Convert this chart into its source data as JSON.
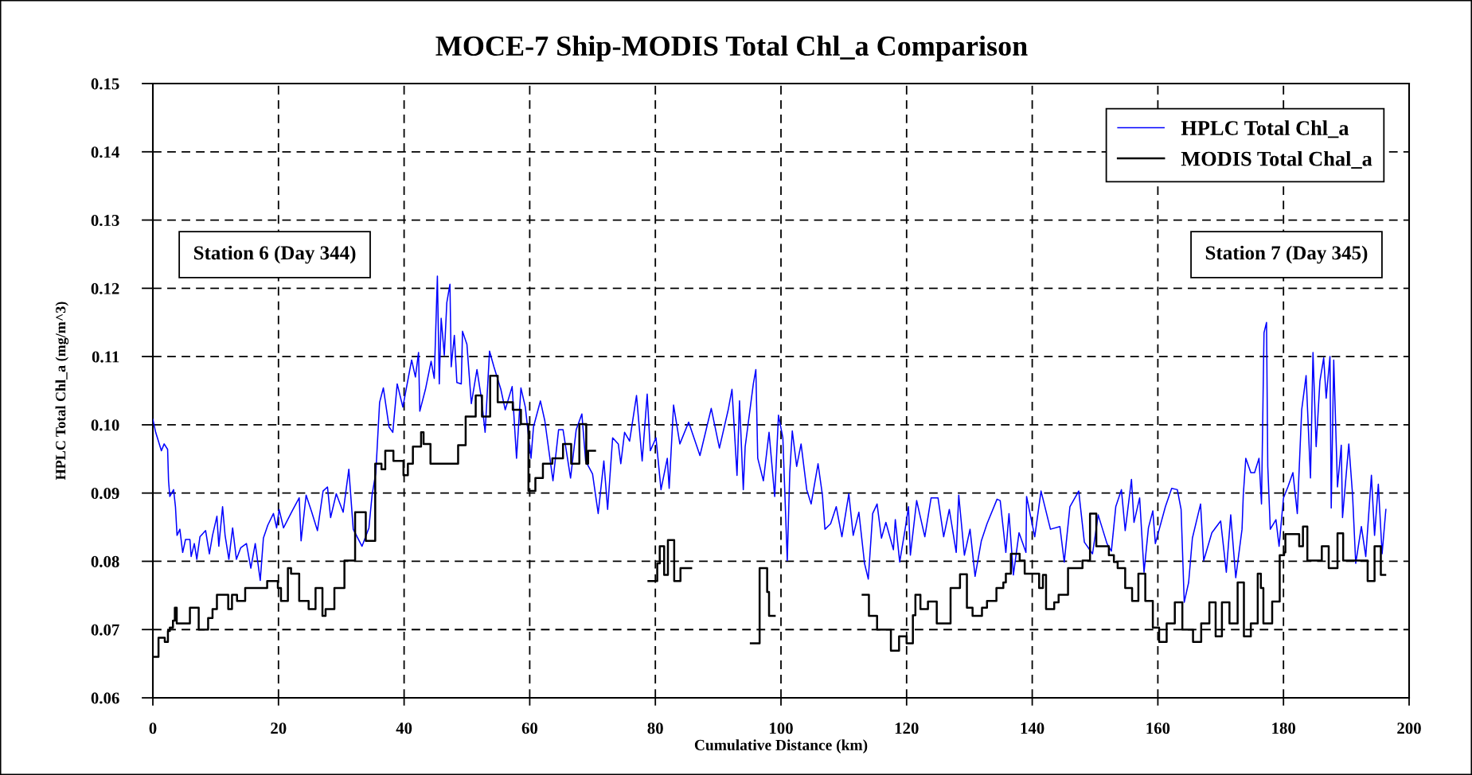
{
  "chart_data": {
    "type": "line",
    "title": "MOCE-7 Ship-MODIS Total Chl_a Comparison",
    "xlabel": "Cumulative Distance (km)",
    "ylabel": "HPLC Total Chl_a (mg/m^3)",
    "annotations": [
      "Station 6 (Day 344)",
      "Station 7 (Day 345)"
    ],
    "xlim": [
      0,
      200
    ],
    "xticks": [
      0,
      20,
      40,
      60,
      80,
      100,
      120,
      140,
      160,
      180,
      200
    ],
    "ylim": [
      0.06,
      0.15
    ],
    "yticks": [
      0.06,
      0.07,
      0.08,
      0.09,
      {
        "value": 0.1,
        "label": "0.10"
      },
      0.11,
      0.12,
      0.13,
      0.14,
      0.15
    ],
    "grid": true,
    "legend": "top right",
    "series": [
      {
        "name": "HPLC Total Chl_a",
        "color": "#0000ff",
        "x": [
          0,
          0.45,
          1.36,
          1.8,
          2.35,
          2.5,
          2.7,
          3.3,
          3.6,
          3.85,
          4.3,
          4.75,
          5.2,
          5.9,
          6.1,
          6.6,
          7.0,
          7.5,
          8.4,
          9.0,
          9.5,
          10.2,
          10.5,
          11.1,
          11.5,
          12.1,
          12.7,
          13.3,
          14.0,
          14.9,
          15.6,
          16.3,
          17.1,
          17.6,
          18.3,
          19.2,
          19.7,
          20.1,
          20.8,
          22.2,
          23.3,
          23.6,
          24.4,
          25.3,
          26.2,
          27.1,
          27.8,
          28.3,
          29.2,
          30.3,
          31.2,
          31.9,
          33.3,
          34.4,
          34.9,
          35.5,
          36.1,
          36.7,
          37.6,
          38.2,
          38.9,
          39.8,
          41.2,
          41.8,
          42.3,
          42.5,
          43.4,
          44.3,
          44.8,
          45.3,
          45.6,
          45.9,
          46.4,
          46.8,
          47.3,
          47.5,
          48.0,
          48.4,
          49.1,
          49.3,
          50.0,
          50.7,
          51.6,
          52.3,
          52.9,
          53.6,
          54.3,
          55.4,
          56.1,
          57.2,
          57.9,
          58.6,
          59.3,
          60.2,
          60.6,
          61.7,
          62.4,
          63.7,
          64.6,
          65.3,
          66.5,
          67.4,
          68.3,
          68.9,
          70.0,
          70.9,
          71.8,
          72.4,
          73.2,
          74.1,
          74.5,
          75.1,
          75.9,
          77.0,
          77.9,
          78.7,
          79.2,
          80.1,
          80.9,
          81.9,
          82.2,
          82.9,
          83.9,
          85.3,
          87.1,
          88.9,
          90.2,
          91.6,
          92.2,
          93.0,
          93.4,
          94.0,
          94.3,
          95.6,
          96.0,
          96.3,
          97.2,
          98.1,
          99.0,
          99.6,
          100.3,
          101.0,
          101.4,
          101.8,
          102.5,
          103.2,
          104.1,
          104.8,
          105.9,
          106.6,
          107.0,
          107.9,
          108.8,
          109.7,
          110.8,
          111.5,
          112.4,
          113.3,
          113.9,
          114.6,
          115.3,
          116.0,
          116.7,
          117.9,
          118.2,
          118.9,
          119.8,
          120.3,
          120.6,
          121.6,
          122.9,
          123.9,
          125.0,
          125.9,
          126.8,
          127.9,
          128.3,
          129.2,
          130.1,
          130.9,
          131.9,
          132.8,
          134.4,
          134.9,
          135.8,
          136.3,
          137.0,
          137.9,
          139.0,
          139.1,
          140.4,
          141.4,
          142.9,
          144.4,
          145.1,
          146.0,
          147.4,
          148.3,
          149.6,
          150.5,
          151.9,
          152.6,
          153.3,
          154.2,
          154.8,
          155.8,
          156.2,
          157.1,
          157.8,
          158.5,
          159.2,
          159.6,
          161.2,
          162.2,
          163.1,
          163.7,
          164.2,
          164.9,
          165.5,
          166.8,
          167.3,
          168.6,
          170.0,
          170.9,
          171.6,
          172.4,
          173.4,
          173.6,
          174.0,
          174.8,
          175.4,
          176.1,
          176.5,
          176.9,
          177.3,
          177.5,
          177.9,
          178.8,
          179.3,
          180.0,
          180.7,
          181.5,
          182.2,
          182.9,
          183.6,
          184.3,
          184.7,
          185.2,
          185.8,
          186.4,
          186.8,
          187.4,
          187.6,
          188.0,
          188.6,
          189.2,
          189.4,
          190.4,
          191.0,
          191.5,
          192.4,
          193.1,
          194.0,
          194.5,
          195.1,
          195.7,
          196.3
        ],
        "values": [
          0.1008,
          0.0989,
          0.0962,
          0.0972,
          0.0964,
          0.0918,
          0.0895,
          0.0905,
          0.088,
          0.0838,
          0.0847,
          0.0813,
          0.0832,
          0.0832,
          0.0807,
          0.0826,
          0.0803,
          0.0836,
          0.0845,
          0.0811,
          0.0838,
          0.0866,
          0.0822,
          0.088,
          0.0838,
          0.0803,
          0.0849,
          0.0803,
          0.082,
          0.0826,
          0.079,
          0.0826,
          0.0772,
          0.0834,
          0.0853,
          0.087,
          0.0849,
          0.0876,
          0.0849,
          0.0874,
          0.0893,
          0.083,
          0.0897,
          0.0872,
          0.0845,
          0.0903,
          0.0909,
          0.0864,
          0.0899,
          0.0872,
          0.0935,
          0.0847,
          0.0822,
          0.0849,
          0.0897,
          0.093,
          0.1033,
          0.1054,
          0.0997,
          0.0989,
          0.106,
          0.1026,
          0.1095,
          0.107,
          0.1106,
          0.102,
          0.1052,
          0.1093,
          0.1068,
          0.1218,
          0.106,
          0.1156,
          0.1102,
          0.1179,
          0.1206,
          0.1085,
          0.1131,
          0.1062,
          0.106,
          0.1137,
          0.1118,
          0.1031,
          0.1081,
          0.1039,
          0.0989,
          0.1108,
          0.1085,
          0.1052,
          0.1022,
          0.1056,
          0.0951,
          0.1054,
          0.1026,
          0.0951,
          0.0997,
          0.1035,
          0.1006,
          0.0918,
          0.0993,
          0.0993,
          0.0922,
          0.0993,
          0.1016,
          0.0947,
          0.0928,
          0.087,
          0.0947,
          0.0876,
          0.0981,
          0.0972,
          0.0943,
          0.0989,
          0.0976,
          0.1043,
          0.0947,
          0.1045,
          0.0962,
          0.0981,
          0.0905,
          0.0951,
          0.0907,
          0.1029,
          0.0972,
          0.1004,
          0.0955,
          0.1024,
          0.0966,
          0.1022,
          0.1052,
          0.0926,
          0.1035,
          0.0905,
          0.0968,
          0.106,
          0.1081,
          0.0951,
          0.0918,
          0.0989,
          0.0895,
          0.1014,
          0.0981,
          0.0801,
          0.093,
          0.0991,
          0.0939,
          0.0972,
          0.0905,
          0.0884,
          0.0943,
          0.0897,
          0.0847,
          0.0855,
          0.088,
          0.0836,
          0.0899,
          0.0838,
          0.0872,
          0.0797,
          0.0774,
          0.087,
          0.0884,
          0.0834,
          0.0857,
          0.0817,
          0.0861,
          0.0799,
          0.0849,
          0.088,
          0.0809,
          0.0889,
          0.0836,
          0.0893,
          0.0893,
          0.0836,
          0.0876,
          0.0813,
          0.0897,
          0.0809,
          0.0847,
          0.0778,
          0.083,
          0.0855,
          0.0891,
          0.0889,
          0.0813,
          0.087,
          0.078,
          0.0842,
          0.0813,
          0.0895,
          0.0836,
          0.0903,
          0.0847,
          0.0851,
          0.0799,
          0.088,
          0.0903,
          0.0828,
          0.0811,
          0.0868,
          0.0826,
          0.0815,
          0.088,
          0.0905,
          0.0845,
          0.092,
          0.0857,
          0.0893,
          0.0784,
          0.0849,
          0.0874,
          0.0826,
          0.088,
          0.0907,
          0.0905,
          0.0876,
          0.074,
          0.0769,
          0.0834,
          0.0884,
          0.0801,
          0.0842,
          0.0859,
          0.0784,
          0.0868,
          0.0776,
          0.0847,
          0.0897,
          0.0951,
          0.093,
          0.093,
          0.0951,
          0.0884,
          0.1135,
          0.115,
          0.0939,
          0.0847,
          0.0861,
          0.0822,
          0.0893,
          0.0909,
          0.093,
          0.087,
          0.1022,
          0.1072,
          0.0922,
          0.1106,
          0.0968,
          0.1064,
          0.1098,
          0.1039,
          0.11,
          0.0878,
          0.1095,
          0.0909,
          0.097,
          0.0864,
          0.0972,
          0.0897,
          0.0797,
          0.0851,
          0.0807,
          0.0926,
          0.0838,
          0.0913,
          0.0811,
          0.0876
        ]
      },
      {
        "name": "MODIS Total Chal_a",
        "color": "#000000",
        "type": "step",
        "x": [
          0,
          0.9,
          1.9,
          2.4,
          2.7,
          3.2,
          3.5,
          3.8,
          5.9,
          7.3,
          8.8,
          9.5,
          10.2,
          12.0,
          12.6,
          13.4,
          14.7,
          18.2,
          19.9,
          20.4,
          21.5,
          22.0,
          23.3,
          24.8,
          25.9,
          27.0,
          27.5,
          28.9,
          30.5,
          32.2,
          33.9,
          35.4,
          36.4,
          37.0,
          38.3,
          39.9,
          40.6,
          41.4,
          42.7,
          43.1,
          44.2,
          48.6,
          49.8,
          51.4,
          52.4,
          53.7,
          54.9,
          57.3,
          58.6,
          59.8,
          60.9,
          62.1,
          63.6,
          65.3,
          66.6,
          67.9,
          69.0,
          69.3,
          70.4,
          78.9,
          80.3,
          80.7,
          81.4,
          82.0,
          83.0,
          84.0,
          85.7,
          95.2,
          96.6,
          97.8,
          98.1,
          99.0,
          113.0,
          114.0,
          115.3,
          117.5,
          118.8,
          120.0,
          121.0,
          121.4,
          122.2,
          123.4,
          124.8,
          127.0,
          128.5,
          129.6,
          130.5,
          132.0,
          132.8,
          134.3,
          135.4,
          135.8,
          136.6,
          138.0,
          138.8,
          141.1,
          141.7,
          142.2,
          143.5,
          144.2,
          145.7,
          148.0,
          149.2,
          150.2,
          152.2,
          153.0,
          153.6,
          154.8,
          155.9,
          156.9,
          158.0,
          159.2,
          160.2,
          161.4,
          162.7,
          163.9,
          165.6,
          166.9,
          168.2,
          169.2,
          170.2,
          171.4,
          172.7,
          173.7,
          174.8,
          175.9,
          176.4,
          176.8,
          178.2,
          179.4,
          180.1,
          180.3,
          182.5,
          183.1,
          183.8,
          186.1,
          187.2,
          188.6,
          189.5,
          193.4,
          194.5,
          195.5,
          196.2
        ],
        "values": [
          0.066,
          0.0688,
          0.0682,
          0.0698,
          0.0703,
          0.0713,
          0.0732,
          0.0709,
          0.0732,
          0.07,
          0.0717,
          0.073,
          0.0751,
          0.073,
          0.0751,
          0.0742,
          0.0761,
          0.0771,
          0.0761,
          0.0742,
          0.079,
          0.0782,
          0.0742,
          0.073,
          0.0761,
          0.072,
          0.073,
          0.0761,
          0.0801,
          0.0872,
          0.083,
          0.0943,
          0.0935,
          0.0962,
          0.0947,
          0.0926,
          0.0943,
          0.0968,
          0.0989,
          0.0972,
          0.0943,
          0.097,
          0.1012,
          0.1043,
          0.1012,
          0.1072,
          0.1033,
          0.1022,
          0.1001,
          0.0903,
          0.0922,
          0.0943,
          0.0951,
          0.0972,
          0.0943,
          0.1001,
          0.0943,
          0.0962,
          null,
          0.0771,
          0.0797,
          0.0822,
          0.078,
          0.0831,
          0.0771,
          0.079,
          null,
          0.068,
          0.079,
          0.0755,
          0.072,
          null,
          0.0751,
          0.072,
          0.07,
          0.0669,
          0.069,
          0.068,
          0.0721,
          0.0751,
          0.073,
          0.0741,
          0.0709,
          0.0761,
          0.0781,
          0.0732,
          0.072,
          0.0732,
          0.0742,
          0.0761,
          0.0769,
          0.0782,
          0.0811,
          0.0801,
          0.0782,
          0.0761,
          0.078,
          0.073,
          0.074,
          0.0751,
          0.079,
          0.0801,
          0.087,
          0.0822,
          0.0809,
          0.0799,
          0.079,
          0.0761,
          0.0742,
          0.0782,
          0.0742,
          0.0703,
          0.0682,
          0.0709,
          0.074,
          0.07,
          0.0682,
          0.0709,
          0.074,
          0.069,
          0.074,
          0.0709,
          0.0769,
          0.069,
          0.0709,
          0.0782,
          0.0761,
          0.0709,
          0.0741,
          0.0809,
          0.0813,
          0.084,
          0.0822,
          0.0851,
          0.0801,
          0.0822,
          0.079,
          0.0841,
          0.0801,
          0.0771,
          0.0822,
          0.078,
          0.078
        ]
      }
    ]
  }
}
